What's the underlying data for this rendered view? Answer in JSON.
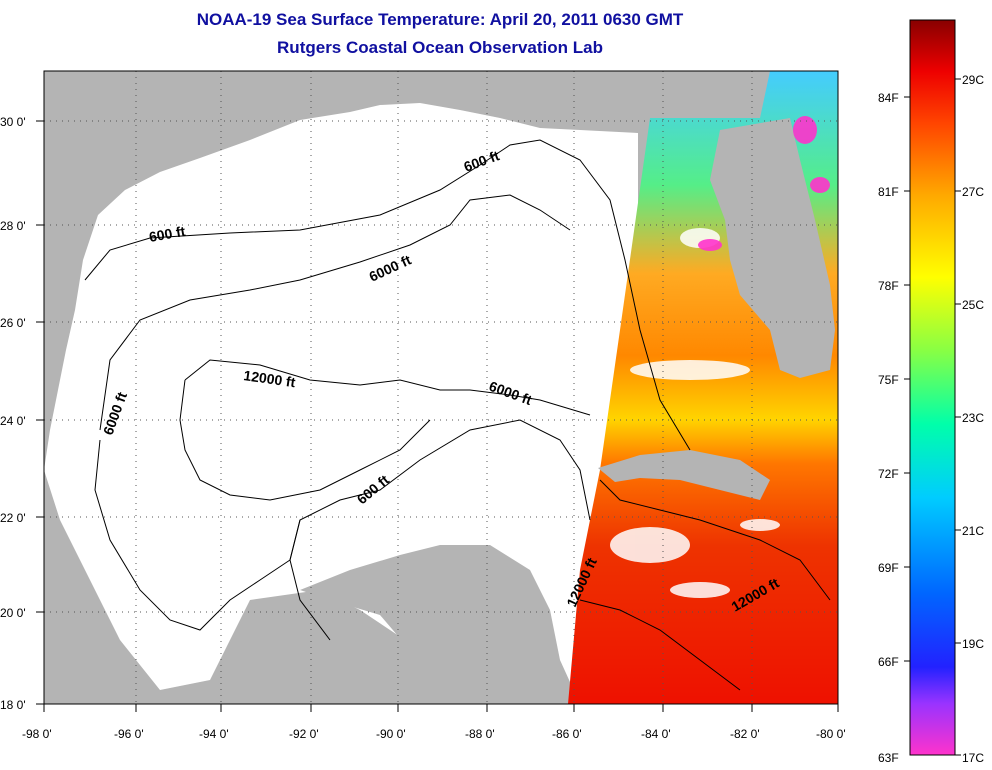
{
  "title": {
    "line1": "NOAA-19 Sea Surface Temperature:  April 20, 2011 0630 GMT",
    "line2": "Rutgers Coastal Ocean Observation Lab"
  },
  "axes": {
    "lon_ticks": [
      "-98 0'",
      "-96 0'",
      "-94 0'",
      "-92 0'",
      "-90 0'",
      "-88 0'",
      "-86 0'",
      "-84 0'",
      "-82 0'",
      "-80 0'"
    ],
    "lat_ticks": [
      "30 0'",
      "28 0'",
      "26 0'",
      "24 0'",
      "22 0'",
      "20 0'",
      "18 0'"
    ]
  },
  "contour_labels": [
    "600 ft",
    "600 ft",
    "6000 ft",
    "6000 ft",
    "12000 ft",
    "6000 ft",
    "600 ft",
    "12000 ft",
    "12000 ft"
  ],
  "colorbar": {
    "fahrenheit": [
      "84F",
      "81F",
      "78F",
      "75F",
      "72F",
      "69F",
      "66F",
      "63F"
    ],
    "celsius": [
      "29C",
      "27C",
      "25C",
      "23C",
      "21C",
      "19C",
      "17C"
    ]
  },
  "colors": {
    "title": "#1010a0",
    "land": "#b4b4b4",
    "ocean_no_data": "#ffffff"
  }
}
